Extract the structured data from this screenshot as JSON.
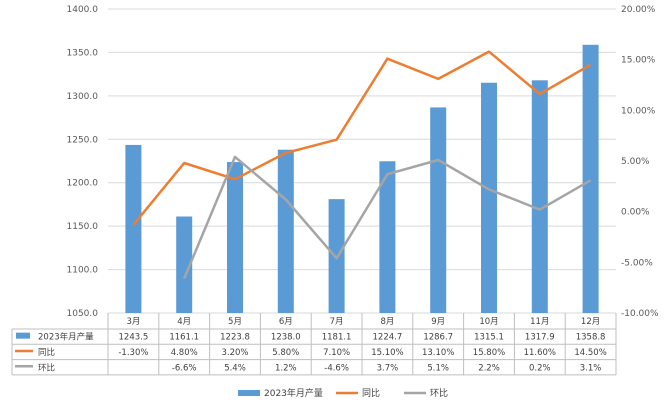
{
  "chart_data": {
    "type": "bar",
    "categories": [
      "3月",
      "4月",
      "5月",
      "6月",
      "7月",
      "8月",
      "9月",
      "10月",
      "11月",
      "12月"
    ],
    "series": [
      {
        "name": "2023年月产量",
        "type": "bar",
        "axis": "left",
        "color": "#5B9BD5",
        "values": [
          1243.5,
          1161.1,
          1223.8,
          1238.0,
          1181.1,
          1224.7,
          1286.7,
          1315.1,
          1317.9,
          1358.8
        ]
      },
      {
        "name": "同比",
        "type": "line",
        "axis": "right",
        "color": "#ED7D31",
        "values": [
          -1.3,
          4.8,
          3.2,
          5.8,
          7.1,
          15.1,
          13.1,
          15.8,
          11.6,
          14.5
        ]
      },
      {
        "name": "环比",
        "type": "line",
        "axis": "right",
        "color": "#A5A5A5",
        "values": [
          null,
          -6.6,
          5.4,
          1.2,
          -4.6,
          3.7,
          5.1,
          2.2,
          0.2,
          3.1
        ]
      }
    ],
    "table": {
      "rows": [
        {
          "label": "2023年月产量",
          "cells": [
            "1243.5",
            "1161.1",
            "1223.8",
            "1238.0",
            "1181.1",
            "1224.7",
            "1286.7",
            "1315.1",
            "1317.9",
            "1358.8"
          ]
        },
        {
          "label": "同比",
          "cells": [
            "-1.30%",
            "4.80%",
            "3.20%",
            "5.80%",
            "7.10%",
            "15.10%",
            "13.10%",
            "15.80%",
            "11.60%",
            "14.50%"
          ]
        },
        {
          "label": "环比",
          "cells": [
            "",
            "-6.6%",
            "5.4%",
            "1.2%",
            "-4.6%",
            "3.7%",
            "5.1%",
            "2.2%",
            "0.2%",
            "3.1%"
          ]
        }
      ]
    },
    "ylim_left": [
      1050,
      1400
    ],
    "yticks_left": [
      "1050.0",
      "1100.0",
      "1150.0",
      "1200.0",
      "1250.0",
      "1300.0",
      "1350.0",
      "1400.0"
    ],
    "ylim_right": [
      -10,
      20
    ],
    "yticks_right": [
      "-10.00%",
      "-5.00%",
      "0.00%",
      "5.00%",
      "10.00%",
      "15.00%",
      "20.00%"
    ],
    "grid": true,
    "legend_position": "bottom",
    "title": "",
    "xlabel": "",
    "ylabel": ""
  }
}
